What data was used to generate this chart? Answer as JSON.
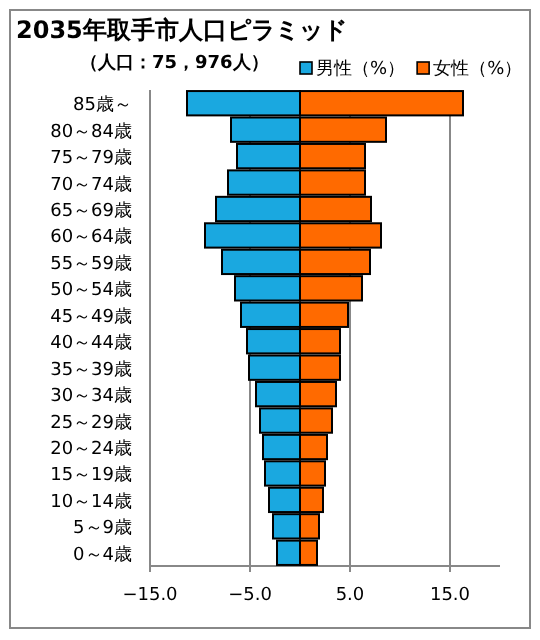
{
  "chart_data": {
    "type": "bar",
    "orientation": "horizontal",
    "title": "2035年取手市人口ピラミッド",
    "subtitle": "（人口：75，976人）",
    "categories": [
      "85歳～",
      "80～84歳",
      "75～79歳",
      "70～74歳",
      "65～69歳",
      "60～64歳",
      "55～59歳",
      "50～54歳",
      "45～49歳",
      "40～44歳",
      "35～39歳",
      "30～34歳",
      "25～29歳",
      "20～24歳",
      "15～19歳",
      "10～14歳",
      "5～9歳",
      "0～4歳"
    ],
    "series": [
      {
        "name": "男性（%）",
        "color": "#1aa8e0",
        "values": [
          -11.3,
          -6.9,
          -6.3,
          -7.2,
          -8.4,
          -9.5,
          -7.8,
          -6.5,
          -5.9,
          -5.3,
          -5.1,
          -4.4,
          -4.0,
          -3.7,
          -3.5,
          -3.1,
          -2.7,
          -2.3
        ]
      },
      {
        "name": "女性（%）",
        "color": "#ff6a00",
        "values": [
          16.3,
          8.6,
          6.5,
          6.5,
          7.1,
          8.1,
          7.0,
          6.2,
          4.8,
          4.0,
          4.0,
          3.6,
          3.2,
          2.7,
          2.5,
          2.3,
          1.9,
          1.7
        ]
      }
    ],
    "xlim": [
      -15,
      20
    ],
    "xticks": [
      {
        "value": -15,
        "label": "−15.0"
      },
      {
        "value": -5,
        "label": "−5.0"
      },
      {
        "value": 5,
        "label": "5.0"
      },
      {
        "value": 15,
        "label": "15.0"
      }
    ],
    "grid": "x",
    "legend": "top right",
    "stacked": true
  }
}
